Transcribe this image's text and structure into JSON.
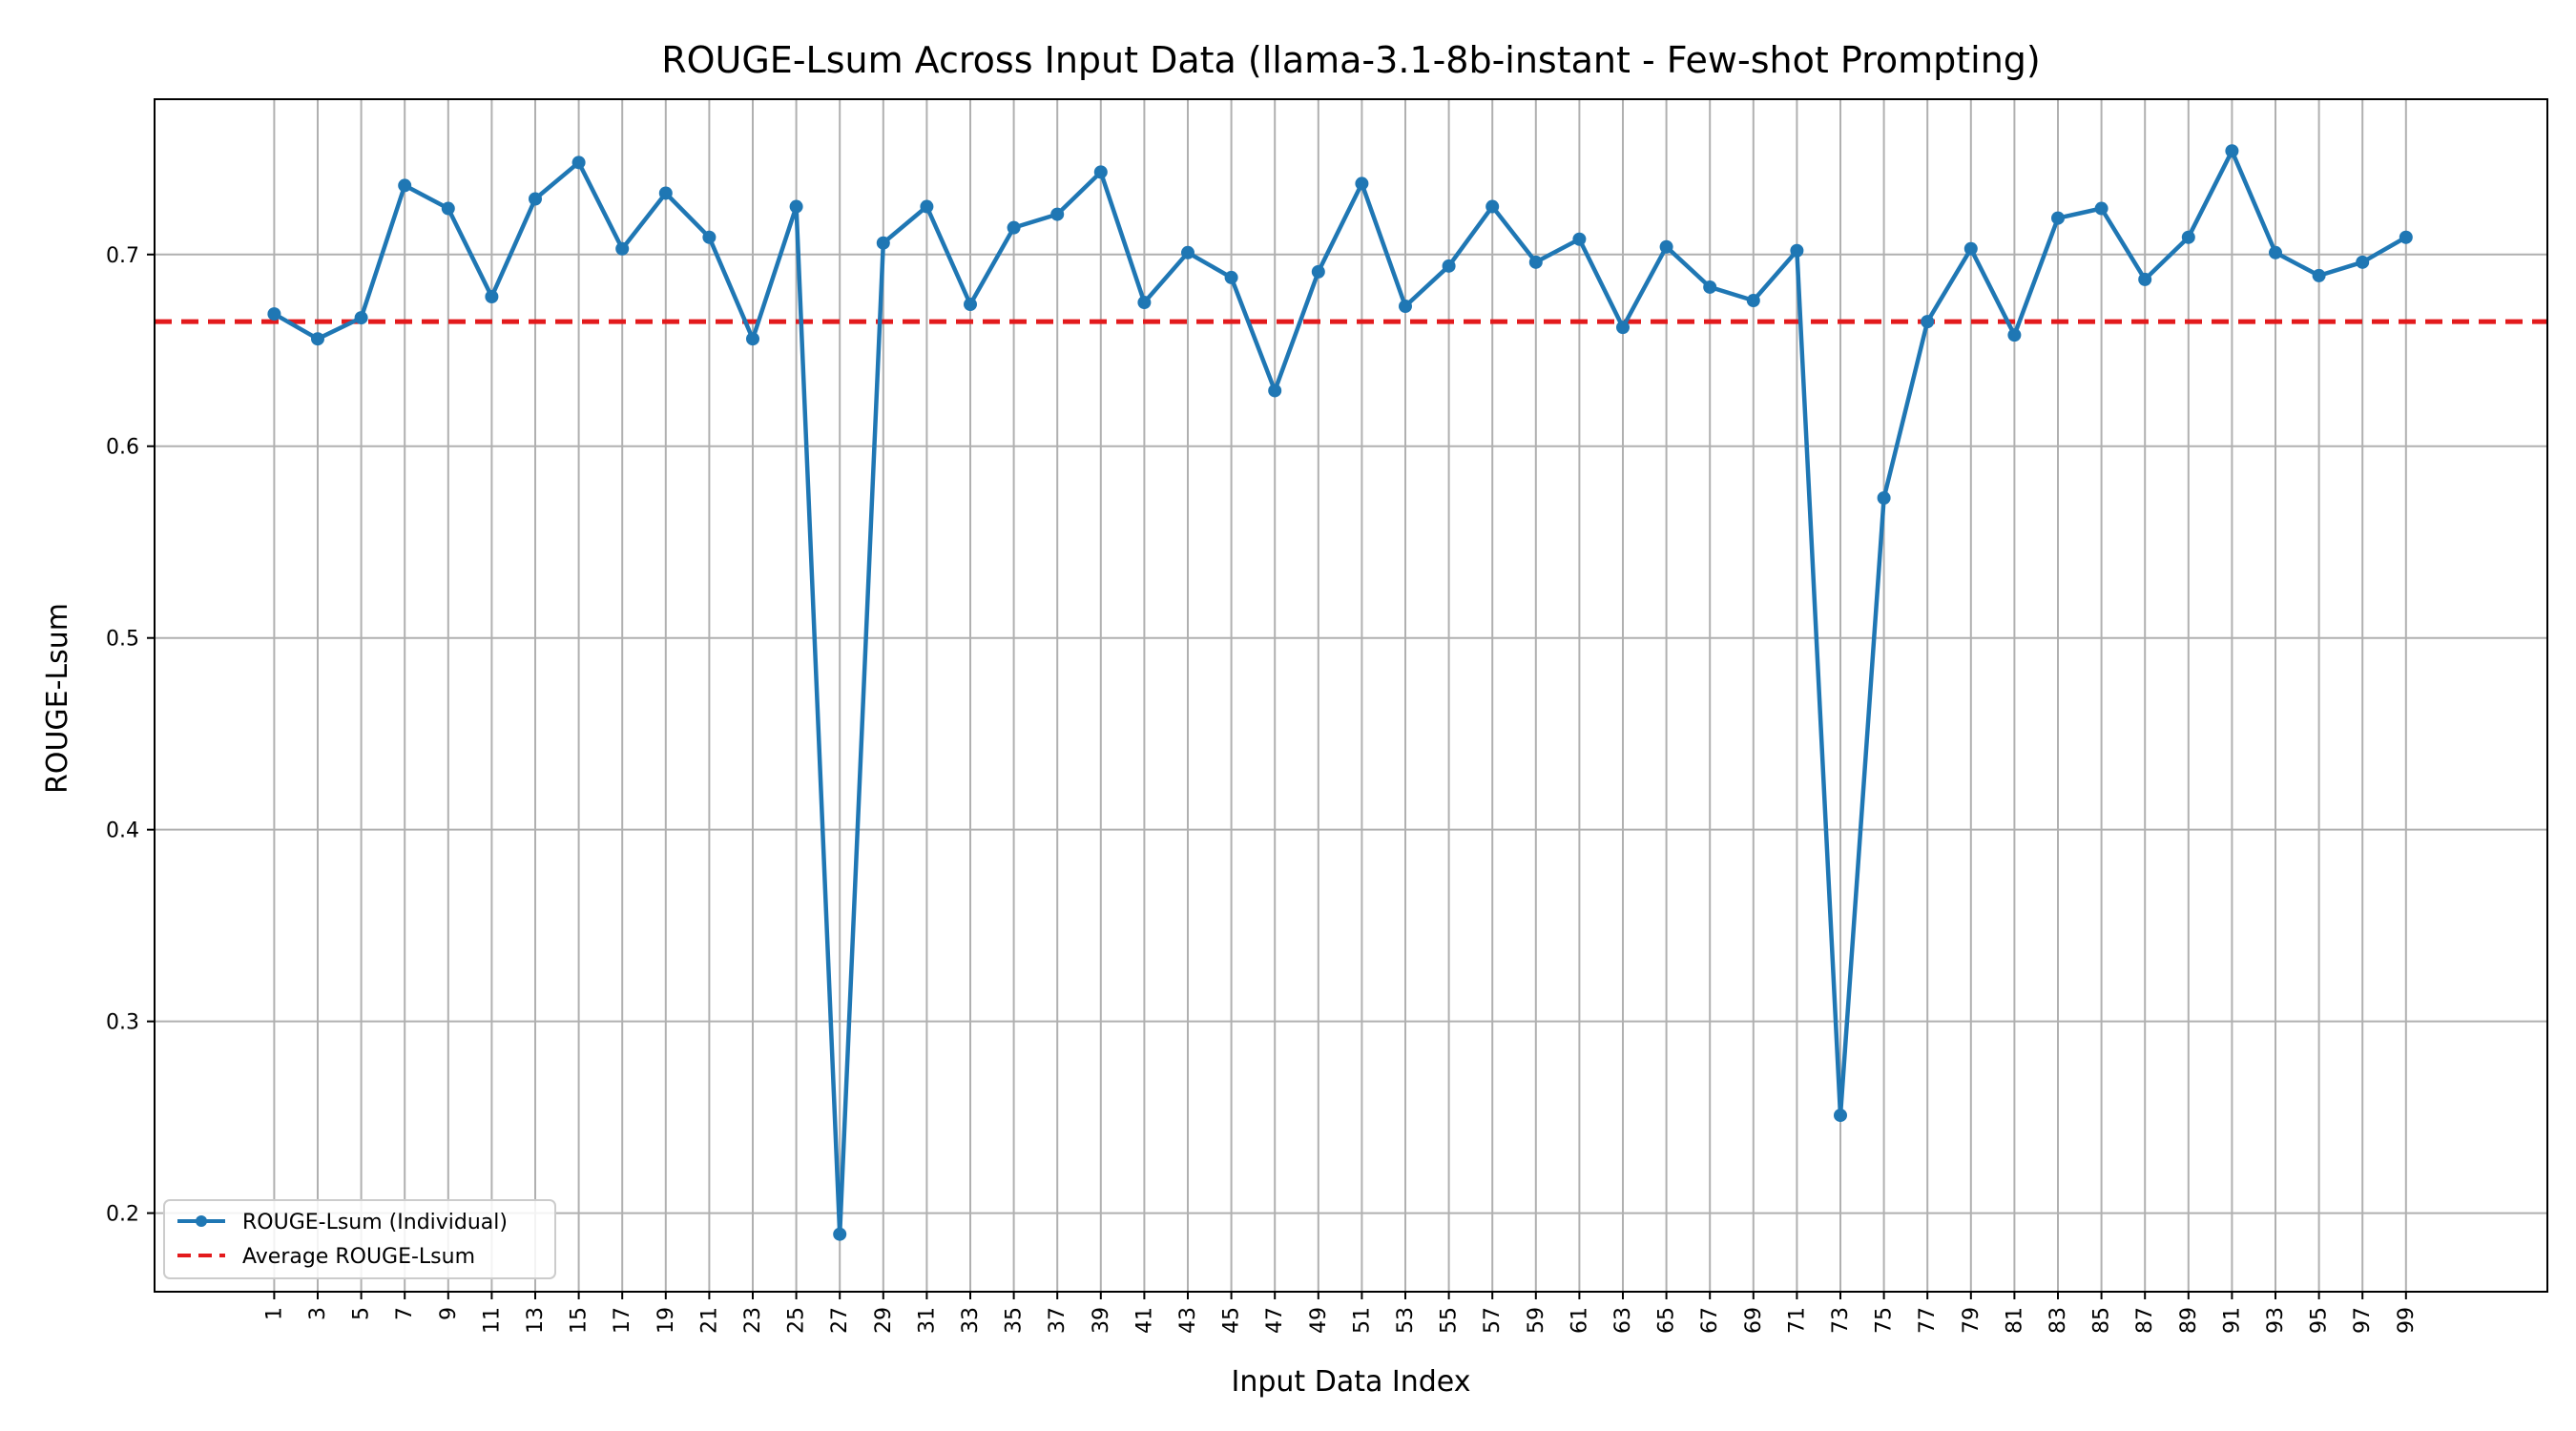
{
  "chart_data": {
    "type": "line",
    "title": "ROUGE-Lsum Across Input Data (llama-3.1-8b-instant - Few-shot Prompting)",
    "xlabel": "Input Data Index",
    "ylabel": "ROUGE-Lsum",
    "xlim": [
      -4.5,
      105.5
    ],
    "ylim": [
      0.159,
      0.781
    ],
    "x_ticks": [
      1,
      3,
      5,
      7,
      9,
      11,
      13,
      15,
      17,
      19,
      21,
      23,
      25,
      27,
      29,
      31,
      33,
      35,
      37,
      39,
      41,
      43,
      45,
      47,
      49,
      51,
      53,
      55,
      57,
      59,
      61,
      63,
      65,
      67,
      69,
      71,
      73,
      75,
      77,
      79,
      81,
      83,
      85,
      87,
      89,
      91,
      93,
      95,
      97,
      99
    ],
    "y_ticks": [
      "0.2",
      "0.3",
      "0.4",
      "0.5",
      "0.6",
      "0.7"
    ],
    "grid": true,
    "legend_position": "lower-left",
    "series": [
      {
        "name": "ROUGE-Lsum (Individual)",
        "color": "#1f77b4",
        "x": [
          1,
          3,
          5,
          7,
          9,
          11,
          13,
          15,
          17,
          19,
          21,
          23,
          25,
          27,
          29,
          31,
          33,
          35,
          37,
          39,
          41,
          43,
          45,
          47,
          49,
          51,
          53,
          55,
          57,
          59,
          61,
          63,
          65,
          67,
          69,
          71,
          73,
          75,
          77,
          79,
          81,
          83,
          85,
          87,
          89,
          91,
          93,
          95,
          97,
          99
        ],
        "values": [
          0.669,
          0.656,
          0.667,
          0.736,
          0.724,
          0.678,
          0.729,
          0.748,
          0.703,
          0.732,
          0.709,
          0.656,
          0.725,
          0.189,
          0.706,
          0.725,
          0.674,
          0.714,
          0.721,
          0.743,
          0.675,
          0.701,
          0.688,
          0.629,
          0.691,
          0.737,
          0.673,
          0.694,
          0.725,
          0.696,
          0.708,
          0.662,
          0.704,
          0.683,
          0.676,
          0.702,
          0.251,
          0.573,
          0.665,
          0.703,
          0.658,
          0.719,
          0.724,
          0.687,
          0.709,
          0.754,
          0.701,
          0.689,
          0.696,
          0.709
        ]
      },
      {
        "name": "Average ROUGE-Lsum",
        "color": "#e31a1c",
        "style": "dashed",
        "value": 0.665
      }
    ]
  }
}
